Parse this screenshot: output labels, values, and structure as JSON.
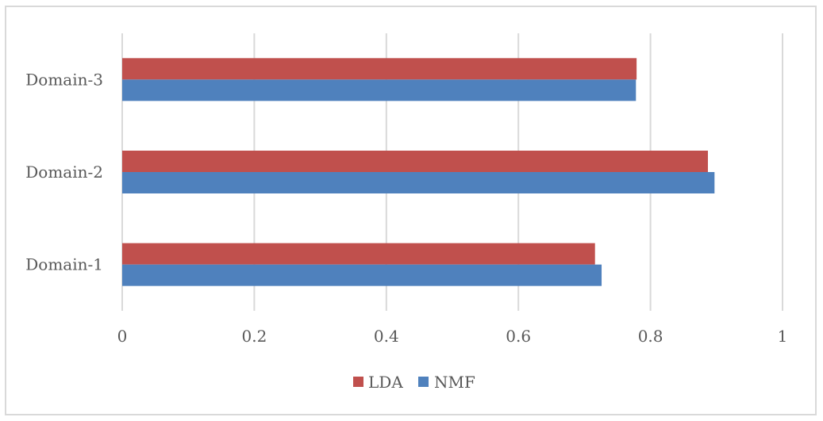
{
  "chart_data": {
    "type": "bar",
    "orientation": "horizontal",
    "categories": [
      "Domain-1",
      "Domain-2",
      "Domain-3"
    ],
    "series": [
      {
        "name": "LDA",
        "values": [
          0.716,
          0.887,
          0.779
        ],
        "color": "#c0504d"
      },
      {
        "name": "NMF",
        "values": [
          0.726,
          0.897,
          0.778
        ],
        "color": "#4f81bd"
      }
    ],
    "xlim": [
      0,
      1
    ],
    "x_ticks": [
      "0",
      "0.2",
      "0.4",
      "0.6",
      "0.8",
      "1"
    ],
    "x_tick_values": [
      0,
      0.2,
      0.4,
      0.6,
      0.8,
      1
    ],
    "grid": "vertical",
    "legend_position": "bottom",
    "title": "",
    "xlabel": "",
    "ylabel": ""
  }
}
